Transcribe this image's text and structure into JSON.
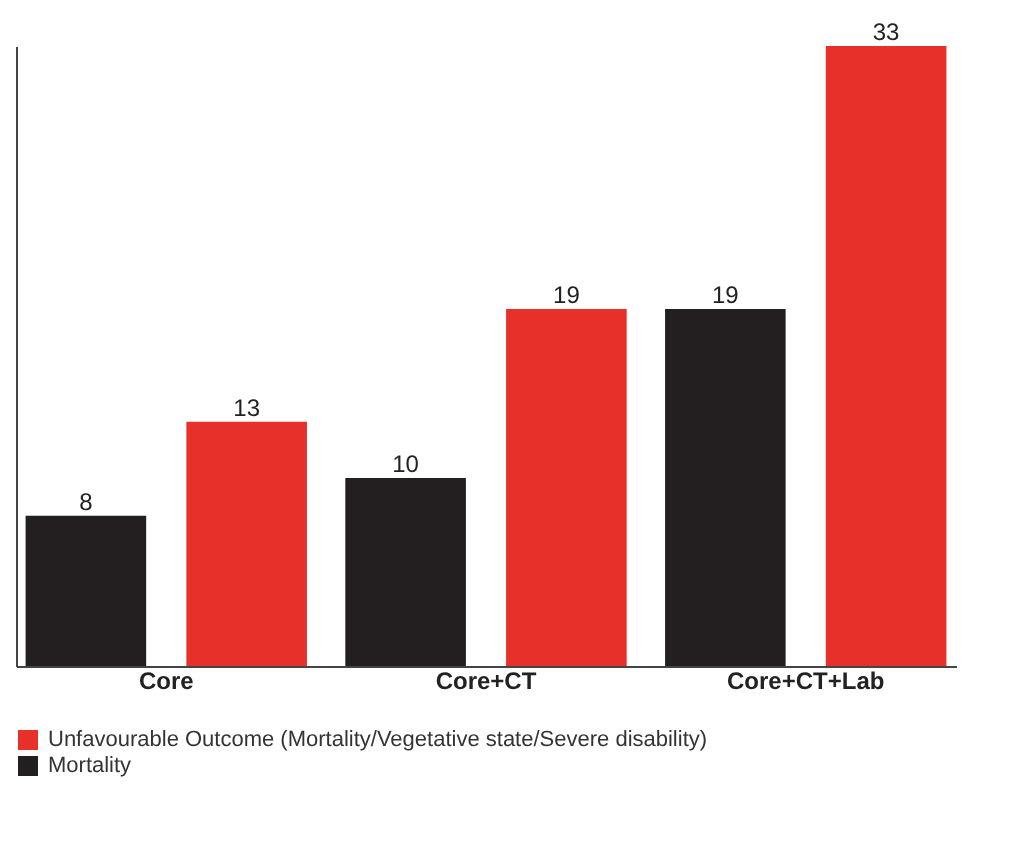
{
  "chart_data": {
    "type": "bar",
    "categories": [
      "Core",
      "Core+CT",
      "Core+CT+Lab"
    ],
    "series": [
      {
        "name": "Mortality",
        "color": "#231f20",
        "values": [
          8,
          10,
          19
        ]
      },
      {
        "name": "Unfavourable Outcome (Mortality/Vegetative state/Severe disability)",
        "color": "#e8302a",
        "values": [
          13,
          19,
          33
        ]
      }
    ],
    "data_labels": true,
    "legend": "bottom",
    "grid": false
  }
}
